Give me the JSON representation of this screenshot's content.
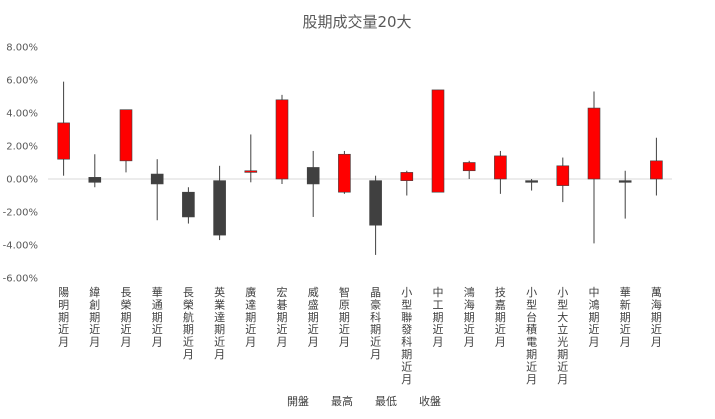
{
  "chart_data": {
    "type": "candlestick",
    "title": "股期成交量20大",
    "xlabel": "",
    "ylabel": "",
    "ylim": [
      -0.06,
      0.08
    ],
    "ytick_step": 0.02,
    "ytick_labels": [
      "8.00%",
      "6.00%",
      "4.00%",
      "2.00%",
      "0.00%",
      "-2.00%",
      "-4.00%",
      "-6.00%"
    ],
    "grid": false,
    "legend": [
      "開盤",
      "最高",
      "最低",
      "收盤"
    ],
    "legend_position": "bottom",
    "colors": {
      "up": "#ff0000",
      "down": "#404040",
      "wick": "#404040",
      "axis": "#d9d9d9",
      "text": "#595959"
    },
    "categories": [
      "陽明期近月",
      "緯創期近月",
      "長榮期近月",
      "華通期近月",
      "長榮航期近月",
      "英業達期近月",
      "廣達期近月",
      "宏碁期近月",
      "威盛期近月",
      "智原期近月",
      "晶豪科期近月",
      "小型聯發科期近月",
      "中工期近月",
      "鴻海期近月",
      "技嘉期近月",
      "小型台積電期近月",
      "小型大立光期近月",
      "中鴻期近月",
      "華新期近月",
      "萬海期近月"
    ],
    "series": [
      {
        "name": "開盤",
        "values": [
          0.012,
          0.001,
          0.011,
          0.003,
          -0.008,
          -0.001,
          0.004,
          0.0,
          0.007,
          -0.008,
          -0.001,
          -0.001,
          -0.008,
          0.005,
          0.0,
          -0.001,
          -0.004,
          0.0,
          -0.001,
          0.0
        ]
      },
      {
        "name": "最高",
        "values": [
          0.059,
          0.015,
          0.042,
          0.012,
          -0.005,
          0.008,
          0.027,
          0.051,
          0.017,
          0.017,
          0.002,
          0.005,
          0.054,
          0.011,
          0.017,
          0.0,
          0.013,
          0.053,
          0.005,
          0.025
        ]
      },
      {
        "name": "最低",
        "values": [
          0.002,
          -0.005,
          0.004,
          -0.025,
          -0.027,
          -0.037,
          -0.002,
          -0.003,
          -0.023,
          -0.009,
          -0.046,
          -0.01,
          -0.008,
          0.0,
          -0.009,
          -0.007,
          -0.014,
          -0.039,
          -0.024,
          -0.01
        ]
      },
      {
        "name": "收盤",
        "values": [
          0.034,
          -0.002,
          0.042,
          -0.003,
          -0.023,
          -0.034,
          0.005,
          0.048,
          -0.003,
          0.015,
          -0.028,
          0.004,
          0.054,
          0.01,
          0.014,
          -0.002,
          0.008,
          0.043,
          -0.002,
          0.011
        ]
      }
    ]
  }
}
